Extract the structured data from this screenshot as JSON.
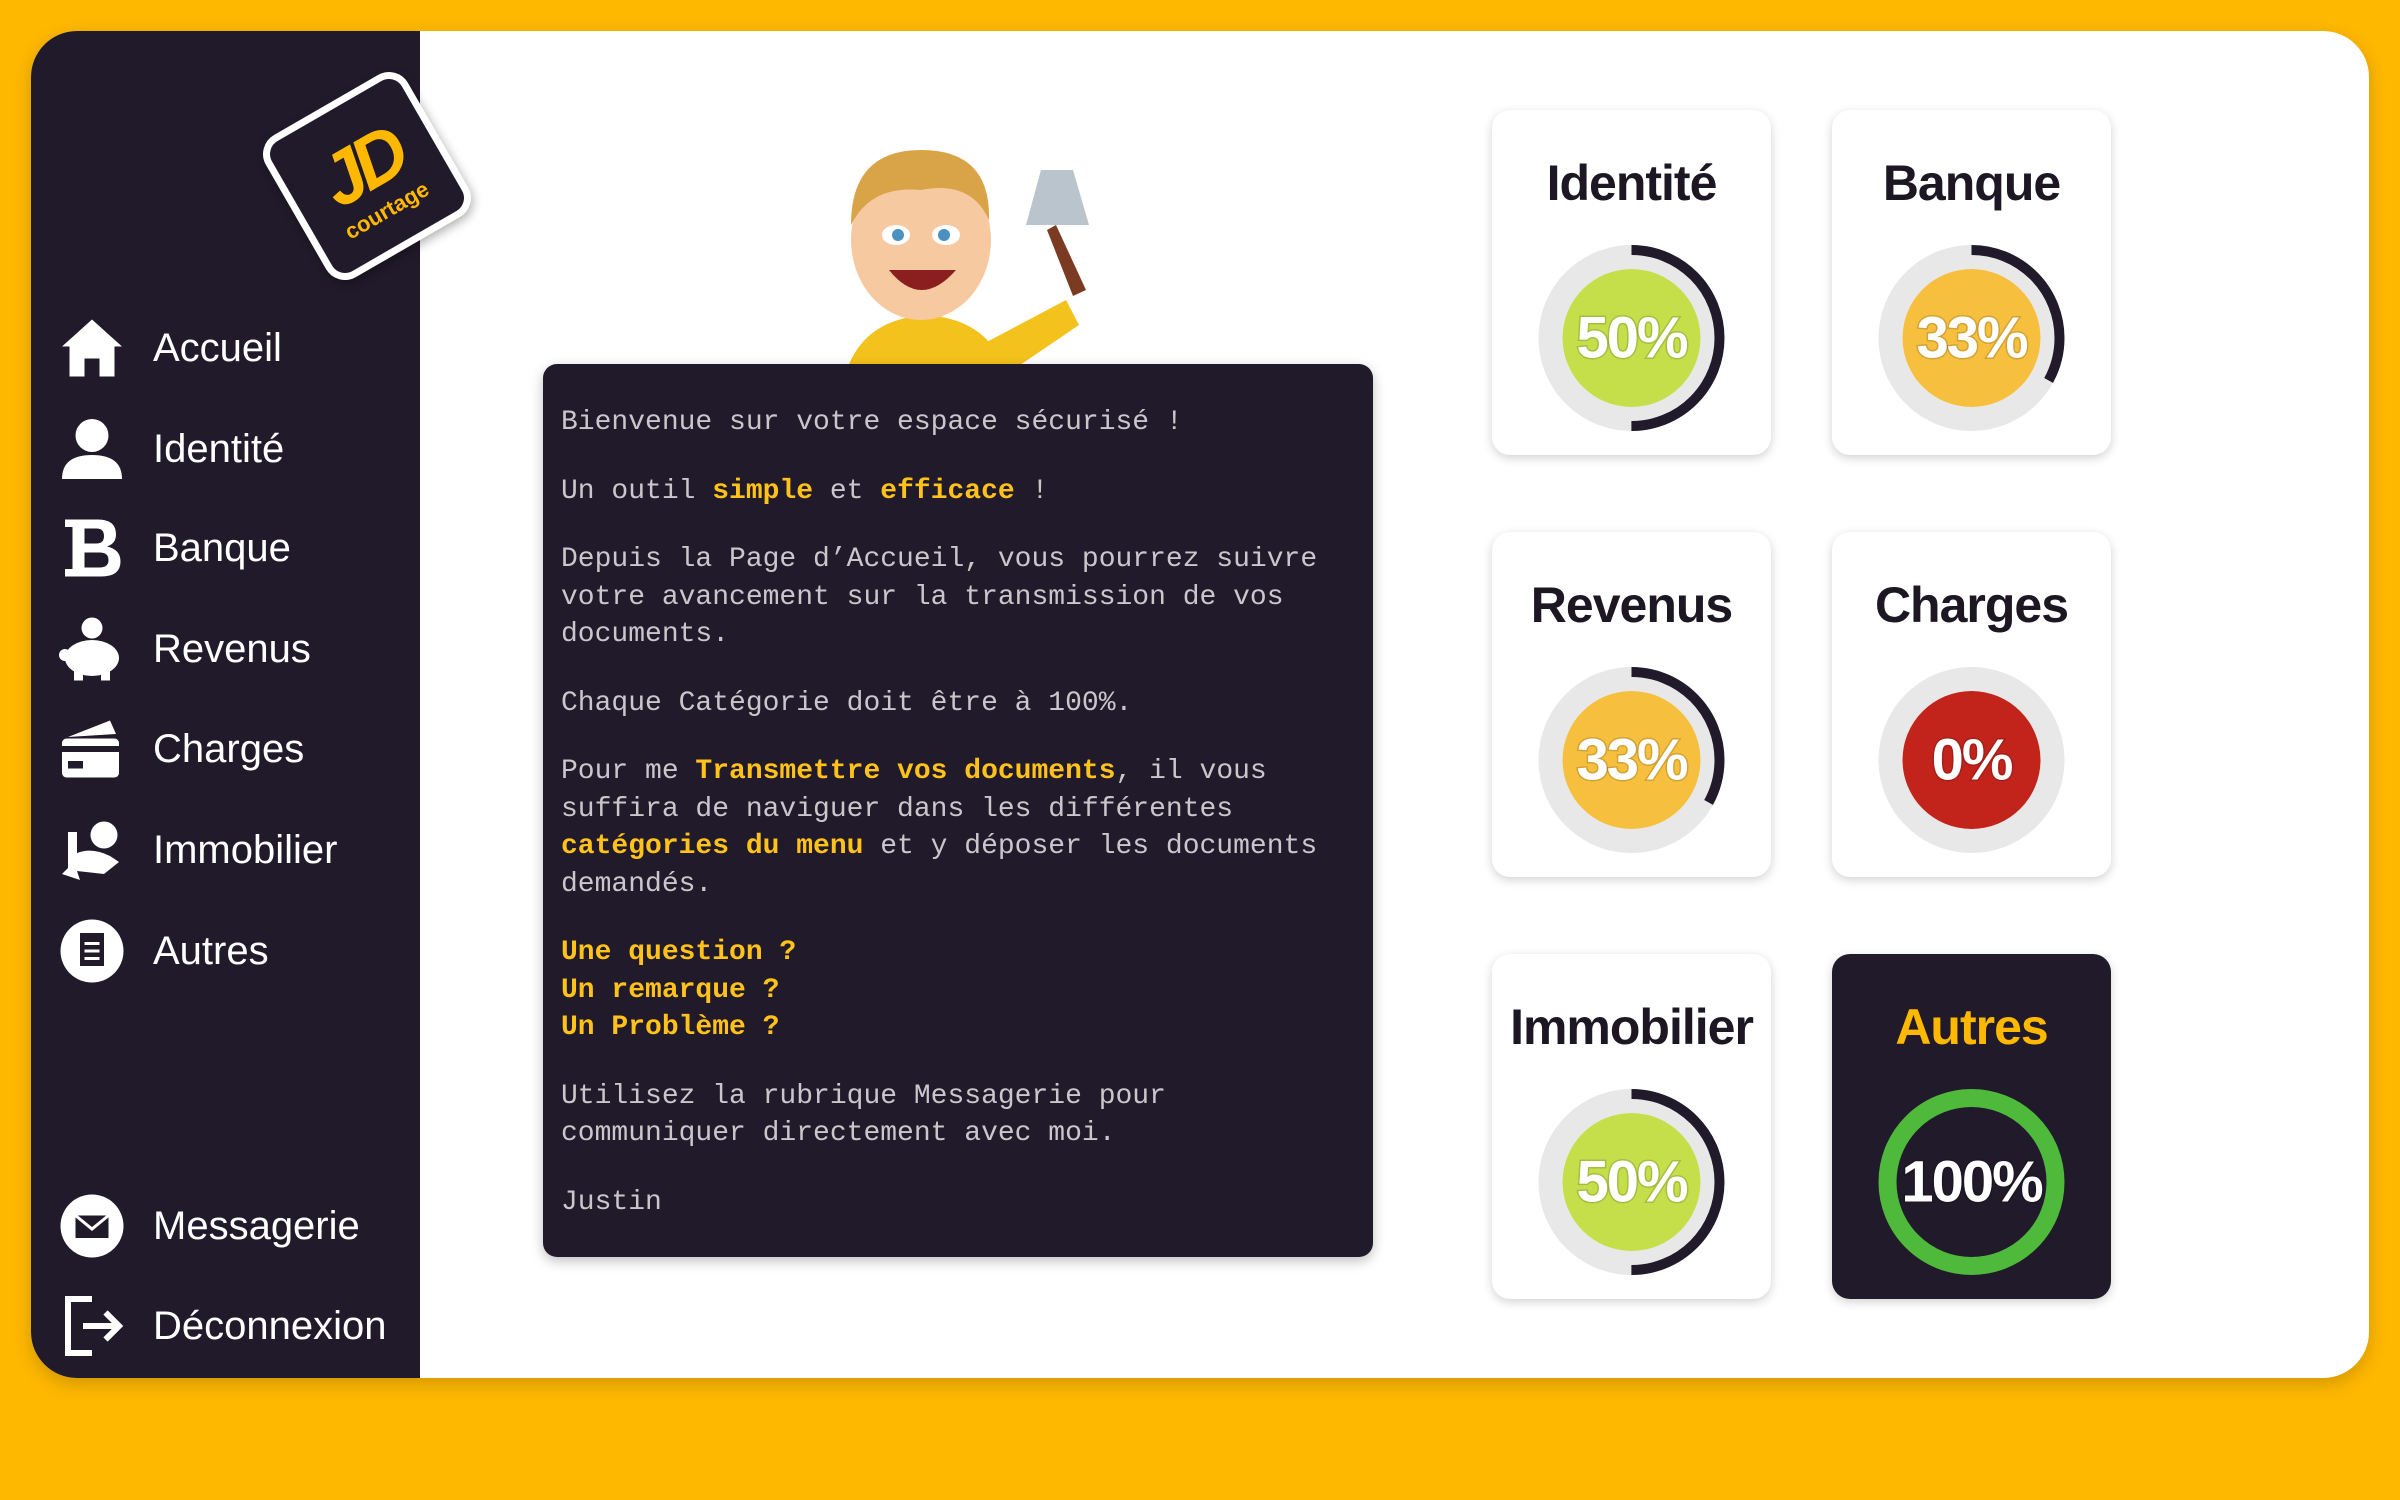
{
  "logo": {
    "mark": "JD",
    "tagline": "courtage"
  },
  "nav": {
    "items": [
      "Accueil",
      "Identité",
      "Banque",
      "Revenus",
      "Charges",
      "Immobilier",
      "Autres"
    ],
    "bottom": [
      "Messagerie",
      "Déconnexion"
    ]
  },
  "message": {
    "paragraphs": [
      [
        [
          {
            "text": "Bienvenue sur votre espace sécurisé !"
          }
        ]
      ],
      [
        [
          {
            "text": "Un outil "
          },
          {
            "text": "simple",
            "highlight": true
          },
          {
            "text": " et "
          },
          {
            "text": "efficace",
            "highlight": true
          },
          {
            "text": " !"
          }
        ]
      ],
      [
        [
          {
            "text": "Depuis la Page d’Accueil, vous pourrez suivre"
          }
        ],
        [
          {
            "text": "votre avancement sur la transmission de vos"
          }
        ],
        [
          {
            "text": "documents."
          }
        ]
      ],
      [
        [
          {
            "text": "Chaque Catégorie doit être à 100%."
          }
        ]
      ],
      [
        [
          {
            "text": "Pour me "
          },
          {
            "text": "Transmettre vos documents",
            "highlight": true
          },
          {
            "text": ", il vous"
          }
        ],
        [
          {
            "text": "suffira de naviguer dans les différentes"
          }
        ],
        [
          {
            "text": "catégories du menu",
            "highlight": true
          },
          {
            "text": " et y déposer les documents"
          }
        ],
        [
          {
            "text": "demandés."
          }
        ]
      ],
      [
        [
          {
            "text": "Une question ?",
            "highlight": true
          }
        ],
        [
          {
            "text": "Un remarque ?",
            "highlight": true
          }
        ],
        [
          {
            "text": "Un Problème ?",
            "highlight": true
          }
        ]
      ],
      [
        [
          {
            "text": "Utilisez la rubrique Messagerie pour"
          }
        ],
        [
          {
            "text": "communiquer directement avec moi."
          }
        ]
      ],
      [
        [
          {
            "text": "Justin"
          }
        ]
      ]
    ]
  },
  "cards": [
    {
      "title": "Identité",
      "value": 50,
      "value_label": "50%",
      "color": "#c4df4a",
      "ring_color": "#211a2a"
    },
    {
      "title": "Banque",
      "value": 33,
      "value_label": "33%",
      "color": "#f6bf3e",
      "ring_color": "#211a2a"
    },
    {
      "title": "Revenus",
      "value": 33,
      "value_label": "33%",
      "color": "#f6bf3e",
      "ring_color": "#211a2a"
    },
    {
      "title": "Charges",
      "value": 0,
      "value_label": "0%",
      "color": "#c2241c",
      "ring_color": "#211a2a"
    },
    {
      "title": "Immobilier",
      "value": 50,
      "value_label": "50%",
      "color": "#c4df4a",
      "ring_color": "#211a2a"
    },
    {
      "title": "Autres",
      "value": 100,
      "value_label": "100%",
      "color": "#211a2a",
      "ring_color": "#4fb93c",
      "active": true
    }
  ]
}
